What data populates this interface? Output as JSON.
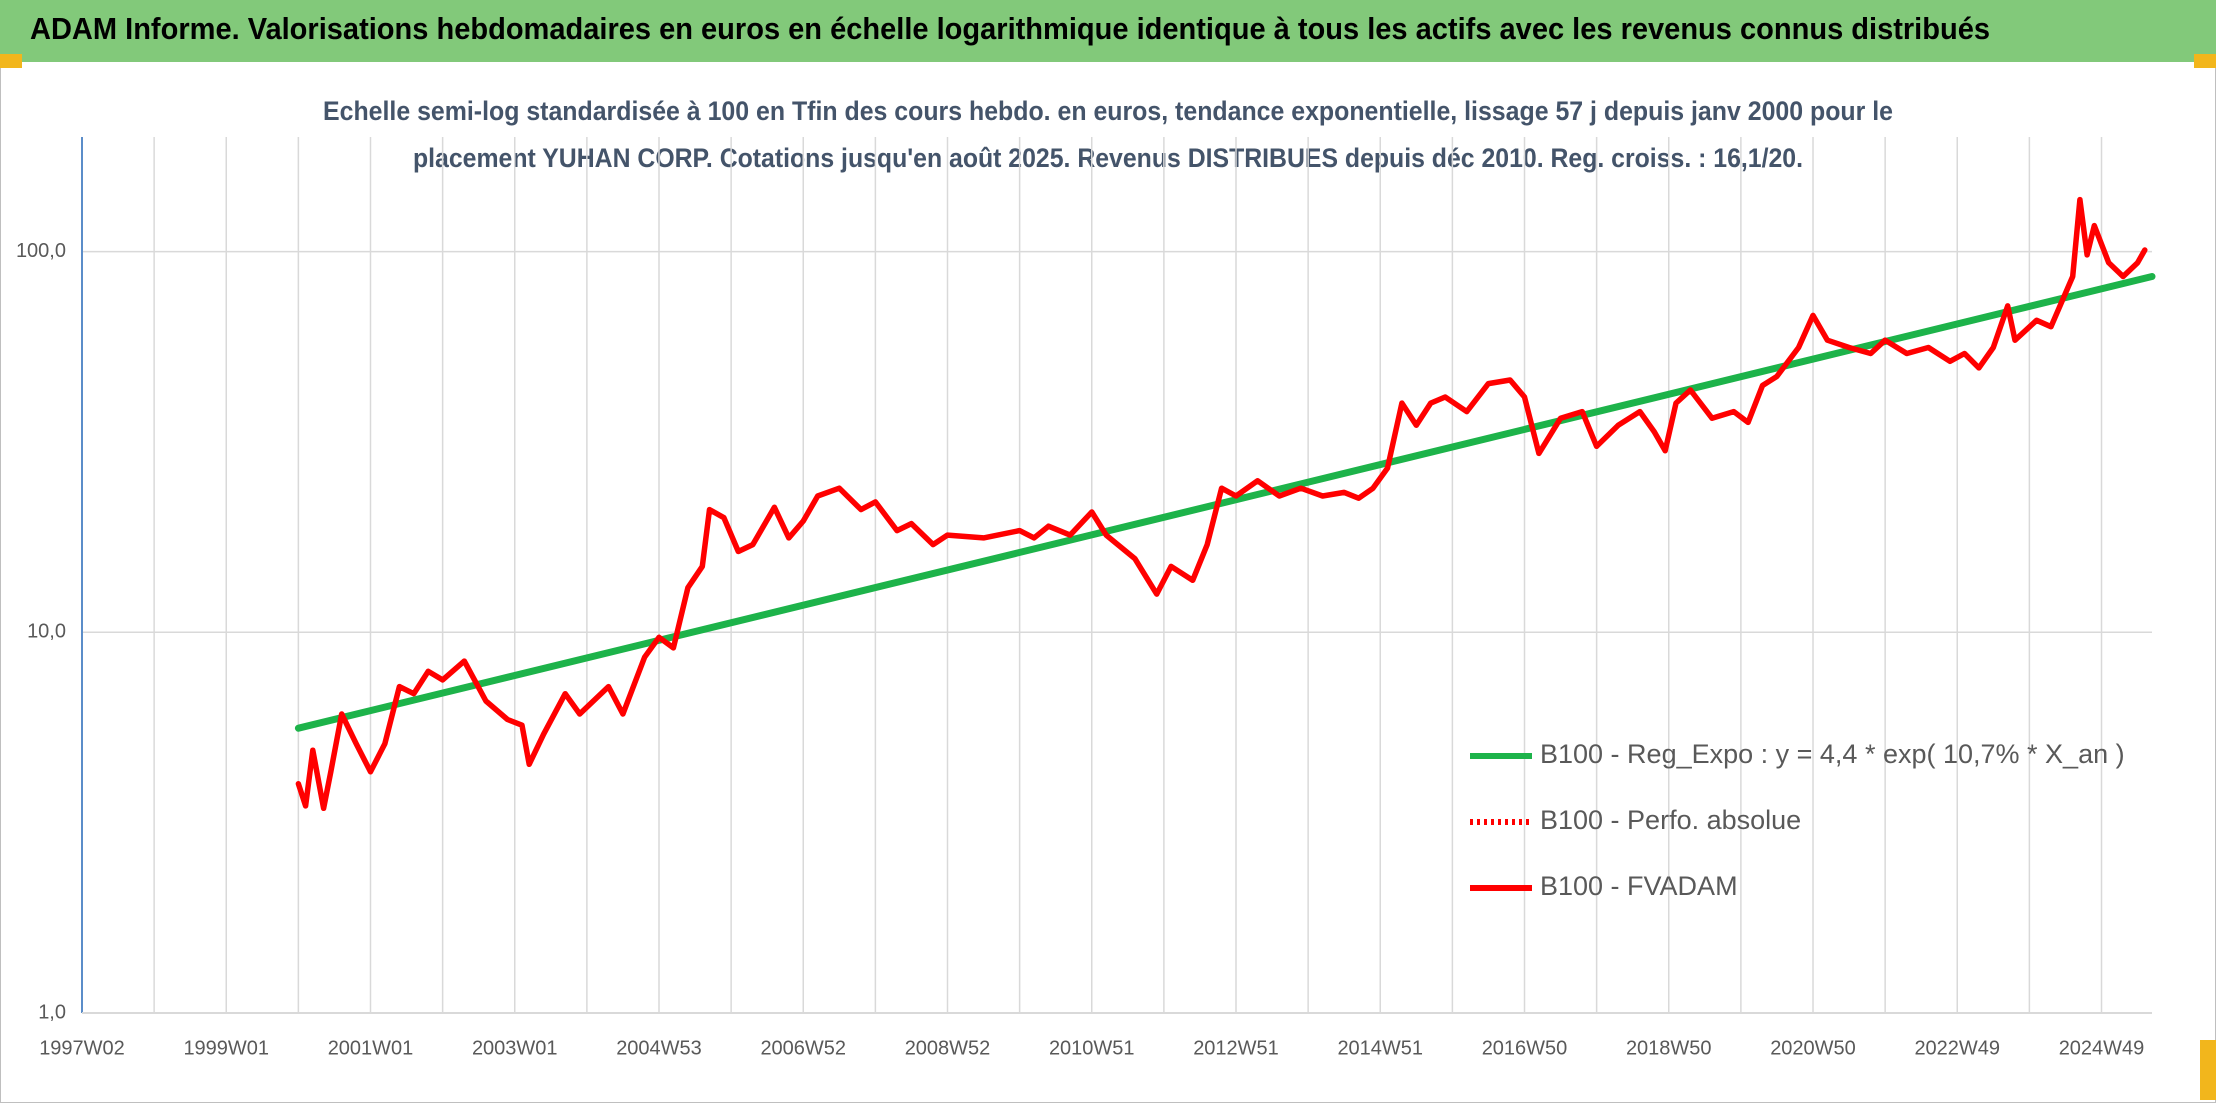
{
  "chart_data": {
    "type": "line",
    "title": "ADAM Informe. Valorisations hebdomadaires en euros en échelle logarithmique identique à tous les actifs avec les revenus connus distribués",
    "subtitle_lines": [
      "Echelle semi-log standardisée à 100 en Tfin des cours hebdo. en euros, tendance exponentielle, lissage 57 j depuis janv 2000 pour le",
      "placement YUHAN CORP. Cotations jusqu'en août 2025. Revenus DISTRIBUES depuis déc 2010. Reg. croiss. : 16,1/20."
    ],
    "log_y": true,
    "grid": true,
    "legend": "bottom-right",
    "xlim": [
      1997.0,
      2025.7
    ],
    "ylim": [
      1,
      200
    ],
    "yticks": [
      {
        "value": 1,
        "label": "1,0"
      },
      {
        "value": 10,
        "label": "10,0"
      },
      {
        "value": 100,
        "label": "100,0"
      }
    ],
    "xticks": [
      {
        "value": 1997,
        "label": "1997W02"
      },
      {
        "value": 1999,
        "label": "1999W01"
      },
      {
        "value": 2001,
        "label": "2001W01"
      },
      {
        "value": 2003,
        "label": "2003W01"
      },
      {
        "value": 2005,
        "label": "2004W53"
      },
      {
        "value": 2007,
        "label": "2006W52"
      },
      {
        "value": 2009,
        "label": "2008W52"
      },
      {
        "value": 2011,
        "label": "2010W51"
      },
      {
        "value": 2013,
        "label": "2012W51"
      },
      {
        "value": 2015,
        "label": "2014W51"
      },
      {
        "value": 2017,
        "label": "2016W50"
      },
      {
        "value": 2019,
        "label": "2018W50"
      },
      {
        "value": 2021,
        "label": "2020W50"
      },
      {
        "value": 2023,
        "label": "2022W49"
      },
      {
        "value": 2025,
        "label": "2024W49"
      }
    ],
    "xminor_ticks": [
      1998,
      2000,
      2002,
      2004,
      2006,
      2008,
      2010,
      2012,
      2014,
      2016,
      2018,
      2020,
      2022,
      2024
    ],
    "series": [
      {
        "name": "B100 - Reg_Expo : y = 4,4 * exp( 10,7% *  X_an )",
        "color": "#1db34a",
        "style": "solid",
        "x": [
          2000.0,
          2025.7
        ],
        "values": [
          5.6,
          86
        ]
      },
      {
        "name": "B100 - Perfo. absolue",
        "color": "#ff0000",
        "style": "dotted",
        "x": [],
        "values": []
      },
      {
        "name": "B100 - FVADAM",
        "color": "#ff0000",
        "style": "solid",
        "x": [
          2000.0,
          2000.1,
          2000.2,
          2000.35,
          2000.45,
          2000.6,
          2000.8,
          2001.0,
          2001.2,
          2001.4,
          2001.6,
          2001.8,
          2002.0,
          2002.3,
          2002.6,
          2002.9,
          2003.1,
          2003.2,
          2003.4,
          2003.7,
          2003.9,
          2004.3,
          2004.5,
          2004.8,
          2005.0,
          2005.2,
          2005.4,
          2005.6,
          2005.7,
          2005.9,
          2006.1,
          2006.3,
          2006.6,
          2006.8,
          2007.0,
          2007.2,
          2007.5,
          2007.8,
          2008.0,
          2008.3,
          2008.5,
          2008.8,
          2009.0,
          2009.5,
          2010.0,
          2010.2,
          2010.4,
          2010.7,
          2011.0,
          2011.2,
          2011.6,
          2011.9,
          2012.1,
          2012.4,
          2012.6,
          2012.8,
          2013.0,
          2013.3,
          2013.6,
          2013.9,
          2014.2,
          2014.5,
          2014.7,
          2014.9,
          2015.1,
          2015.3,
          2015.5,
          2015.7,
          2015.9,
          2016.2,
          2016.5,
          2016.8,
          2017.0,
          2017.2,
          2017.5,
          2017.8,
          2018.0,
          2018.3,
          2018.6,
          2018.8,
          2018.95,
          2019.1,
          2019.3,
          2019.6,
          2019.9,
          2020.1,
          2020.3,
          2020.5,
          2020.8,
          2021.0,
          2021.2,
          2021.5,
          2021.8,
          2022.0,
          2022.3,
          2022.6,
          2022.9,
          2023.1,
          2023.3,
          2023.5,
          2023.7,
          2023.8,
          2024.1,
          2024.3,
          2024.6,
          2024.7,
          2024.8,
          2024.9,
          2025.1,
          2025.3,
          2025.5,
          2025.6
        ],
        "values": [
          4.0,
          3.5,
          4.9,
          3.45,
          4.3,
          6.1,
          5.1,
          4.3,
          5.1,
          7.2,
          6.9,
          7.9,
          7.5,
          8.4,
          6.6,
          5.9,
          5.7,
          4.5,
          5.4,
          6.9,
          6.1,
          7.2,
          6.1,
          8.6,
          9.7,
          9.1,
          13.1,
          14.9,
          21,
          20,
          16.3,
          17,
          21.3,
          17.7,
          19.6,
          22.8,
          23.9,
          21,
          22,
          18.5,
          19.3,
          17,
          18,
          17.7,
          18.5,
          17.7,
          19,
          18,
          20.7,
          18,
          15.6,
          12.6,
          14.9,
          13.7,
          17,
          23.9,
          22.8,
          25,
          22.8,
          23.9,
          22.8,
          23.3,
          22.5,
          23.9,
          27,
          40,
          35,
          40,
          41.5,
          38,
          45,
          46,
          41.5,
          29.5,
          36.5,
          38,
          30.8,
          35,
          38,
          33.6,
          30,
          40,
          43.3,
          36.5,
          38,
          35.6,
          44.5,
          47,
          56,
          68,
          58.5,
          56,
          54,
          58.5,
          54,
          56,
          51.5,
          54,
          49.5,
          56,
          72,
          58.5,
          66,
          63.5,
          86,
          137,
          98,
          117,
          93.5,
          86,
          93.5,
          101
        ]
      }
    ]
  }
}
